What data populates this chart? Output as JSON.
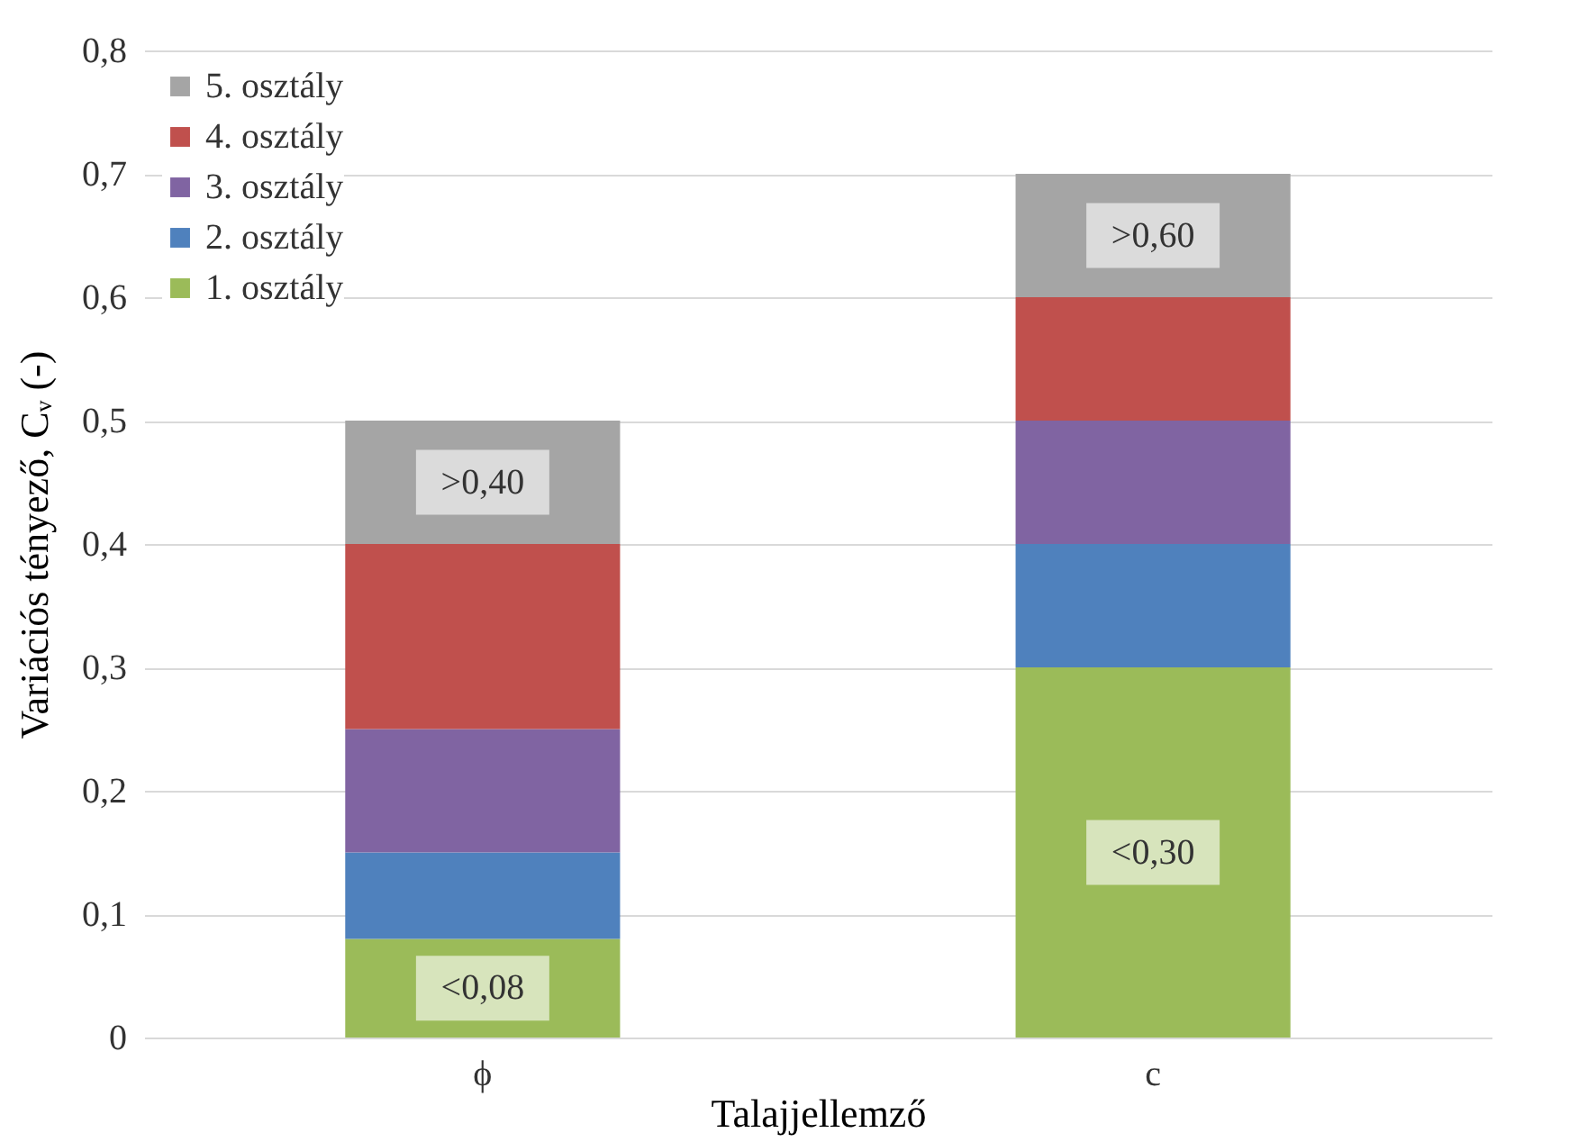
{
  "chart_data": {
    "type": "bar",
    "stacked": true,
    "xlabel": "Talajjellemző",
    "ylabel": "Variációs tényező, Cᵥ (-)",
    "categories": [
      "ϕ",
      "c"
    ],
    "series": [
      {
        "name": "1. osztály",
        "color": "#9bbb59",
        "values": [
          0.08,
          0.3
        ],
        "value_labels": [
          "<0,08",
          "<0,30"
        ]
      },
      {
        "name": "2. osztály",
        "color": "#4f81bd",
        "values": [
          0.07,
          0.1
        ]
      },
      {
        "name": "3. osztály",
        "color": "#8064a2",
        "values": [
          0.1,
          0.1
        ]
      },
      {
        "name": "4. osztály",
        "color": "#c0504d",
        "values": [
          0.15,
          0.1
        ]
      },
      {
        "name": "5. osztály",
        "color": "#a5a5a5",
        "values": [
          0.1,
          0.1
        ],
        "value_labels": [
          ">0,40",
          ">0,60"
        ]
      }
    ],
    "ylim": [
      0,
      0.8
    ],
    "yticks": [
      {
        "value": 0,
        "label": "0"
      },
      {
        "value": 0.1,
        "label": "0,1"
      },
      {
        "value": 0.2,
        "label": "0,2"
      },
      {
        "value": 0.3,
        "label": "0,3"
      },
      {
        "value": 0.4,
        "label": "0,4"
      },
      {
        "value": 0.5,
        "label": "0,5"
      },
      {
        "value": 0.6,
        "label": "0,6"
      },
      {
        "value": 0.7,
        "label": "0,7"
      },
      {
        "value": 0.8,
        "label": "0,8"
      }
    ],
    "grid": "y",
    "legend": "top left"
  }
}
